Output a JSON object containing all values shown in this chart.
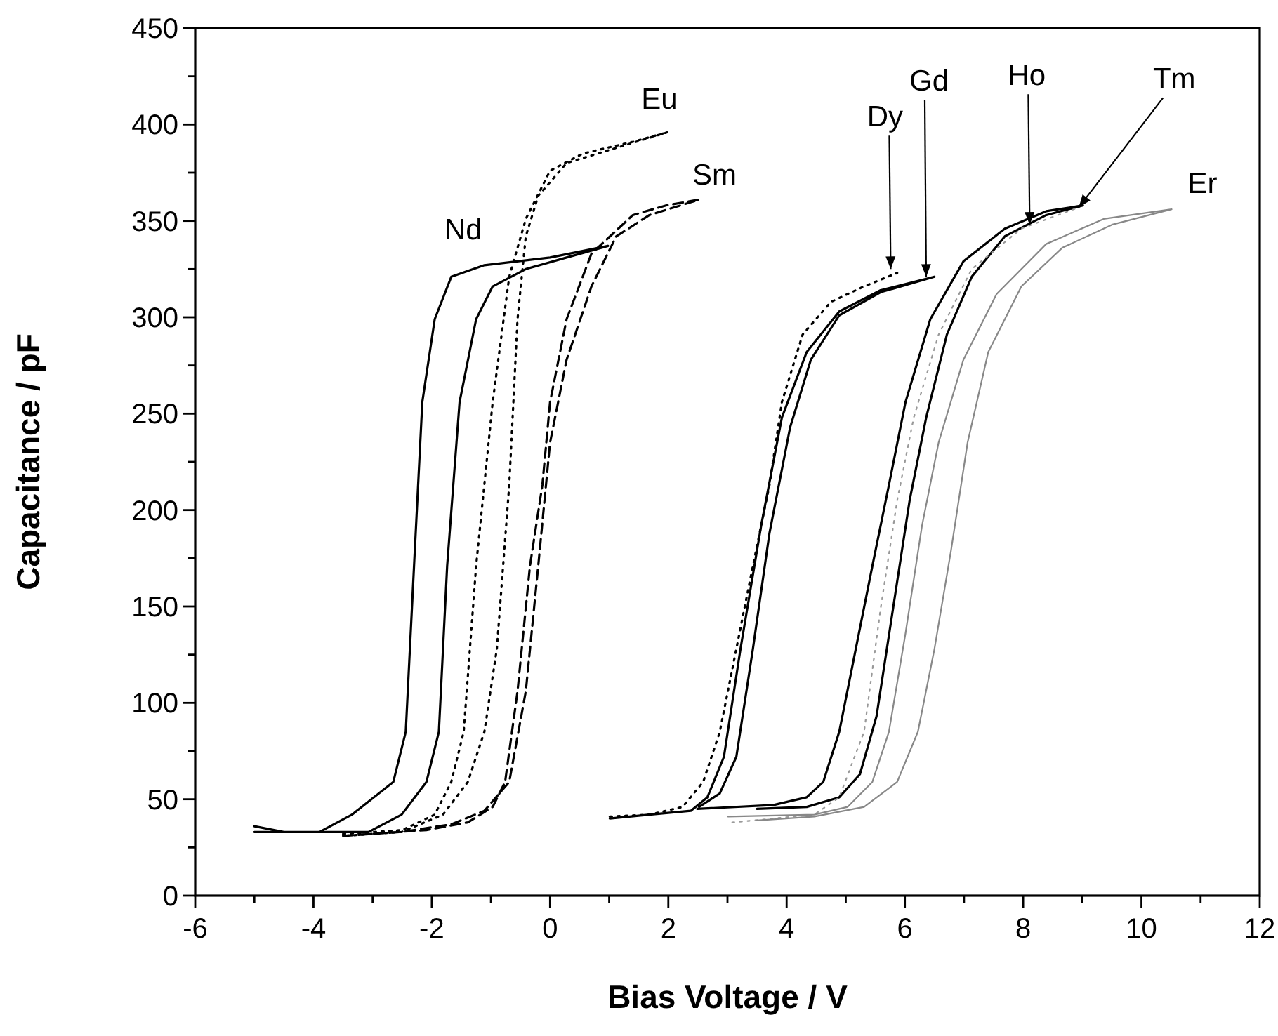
{
  "chart_data": {
    "type": "line",
    "xlabel": "Bias Voltage / V",
    "ylabel": "Capacitance / pF",
    "xlim": [
      -6,
      12
    ],
    "xticks": [
      -6,
      {
        "value": -5,
        "label": null
      },
      -4,
      {
        "value": -3,
        "label": null
      },
      -2,
      {
        "value": -1,
        "label": null
      },
      0,
      {
        "value": 1,
        "label": null
      },
      2,
      {
        "value": 3,
        "label": null
      },
      4,
      {
        "value": 5,
        "label": null
      },
      6,
      {
        "value": 7,
        "label": null
      },
      8,
      {
        "value": 9,
        "label": null
      },
      10,
      {
        "value": 11,
        "label": null
      },
      12
    ],
    "ylim": [
      0,
      450
    ],
    "yticks": [
      0,
      {
        "value": 25,
        "label": null
      },
      50,
      {
        "value": 75,
        "label": null
      },
      100,
      {
        "value": 125,
        "label": null
      },
      150,
      {
        "value": 175,
        "label": null
      },
      200,
      {
        "value": 225,
        "label": null
      },
      250,
      {
        "value": 275,
        "label": null
      },
      300,
      {
        "value": 325,
        "label": null
      },
      350,
      {
        "value": 375,
        "label": null
      },
      400,
      {
        "value": 425,
        "label": null
      },
      450
    ],
    "grid": false,
    "marker": "none",
    "series": [
      {
        "color": "#000000",
        "line_style": "solid",
        "x": [
          -5,
          -4.5,
          -3.9,
          -3.35,
          -2.65,
          -2.44,
          -2.3,
          -2.16,
          -1.95,
          -1.67,
          -1.11,
          0,
          0.98,
          0.28,
          -0.41,
          -0.97,
          -1.25,
          -1.53,
          -1.74,
          -1.88,
          -2.09,
          -2.51,
          -3.07,
          -3.9,
          -5
        ],
        "values": [
          36,
          33,
          33,
          42,
          59,
          85,
          171,
          256,
          299,
          321,
          327,
          331,
          337,
          331,
          325,
          316,
          299,
          256,
          171,
          85,
          59,
          42,
          33,
          33,
          33
        ]
      },
      {
        "color": "#000000",
        "line_style": "dotted",
        "x": [
          -3.5,
          -2.5,
          -1.95,
          -1.67,
          -1.46,
          -1.25,
          -0.97,
          -0.69,
          -0.41,
          0,
          0.56,
          1.4,
          1.99,
          0.28,
          -0.2,
          -0.41,
          -0.55,
          -0.69,
          -0.9,
          -1.11,
          -1.39,
          -1.81,
          -2.51,
          -3.49
        ],
        "values": [
          32,
          34,
          42,
          59,
          85,
          171,
          256,
          321,
          351,
          376,
          385,
          391,
          396,
          380,
          363,
          342,
          299,
          213,
          128,
          85,
          59,
          42,
          33,
          31
        ]
      },
      {
        "color": "#000000",
        "line_style": "dashed",
        "x": [
          -3.5,
          -2.09,
          -1.39,
          -0.97,
          -0.76,
          -0.55,
          -0.34,
          -0.13,
          0,
          0.28,
          0.7,
          1.4,
          1.96,
          2.52,
          1.68,
          1.12,
          0.7,
          0.28,
          0,
          -0.2,
          -0.41,
          -0.69,
          -1.11,
          -1.67,
          -2.51
        ],
        "values": [
          31,
          34,
          38,
          46,
          59,
          106,
          171,
          213,
          256,
          299,
          333,
          353,
          358,
          361,
          353,
          342,
          316,
          278,
          235,
          171,
          106,
          59,
          44,
          37,
          33
        ]
      },
      {
        "color": "#000000",
        "line_style": "dotted",
        "x": [
          1.01,
          1.68,
          2.24,
          2.59,
          2.87,
          3.15,
          3.43,
          3.71,
          3.92,
          4.27,
          4.75,
          5.31,
          5.87
        ],
        "values": [
          41,
          42,
          46,
          59,
          85,
          128,
          171,
          213,
          256,
          291,
          308,
          316,
          323
        ]
      },
      {
        "color": "#000000",
        "line_style": "solid",
        "x": [
          1.01,
          1.68,
          2.38,
          2.66,
          2.94,
          3.22,
          3.57,
          3.92,
          4.34,
          4.89,
          5.59,
          6.5,
          5.59,
          4.89,
          4.41,
          4.06,
          3.71,
          3.43,
          3.15,
          2.87,
          2.52
        ],
        "values": [
          40,
          42,
          44,
          51,
          72,
          128,
          192,
          248,
          282,
          303,
          314,
          321,
          313,
          301,
          278,
          243,
          188,
          128,
          72,
          53,
          46
        ]
      },
      {
        "color": "#000000",
        "line_style": "solid",
        "x": [
          2.49,
          3.78,
          4.34,
          4.62,
          4.89,
          5.17,
          5.45,
          5.73,
          6.01,
          6.43,
          6.99,
          7.69,
          8.39,
          9.01,
          8.39,
          7.69,
          7.13,
          6.71,
          6.36,
          6.08,
          5.8,
          5.52,
          5.24,
          4.89,
          4.34,
          3.5
        ],
        "values": [
          45,
          47,
          51,
          59,
          85,
          128,
          171,
          213,
          256,
          299,
          329,
          346,
          355,
          358,
          353,
          342,
          321,
          291,
          248,
          205,
          149,
          93,
          63,
          51,
          46,
          45
        ]
      },
      {
        "color": "#999999",
        "line_style": "dotted",
        "x": [
          3.08,
          4.47,
          4.89,
          5.31,
          5.59,
          5.87,
          6.15,
          6.57,
          7.13,
          7.97,
          8.94
        ],
        "values": [
          38,
          42,
          51,
          85,
          149,
          205,
          248,
          291,
          325,
          346,
          357
        ]
      },
      {
        "color": "#888888",
        "line_style": "solid",
        "x": [
          3.01,
          4.47,
          5.03,
          5.45,
          5.73,
          6.01,
          6.29,
          6.57,
          6.99,
          7.55,
          8.39,
          9.36,
          10.51,
          9.5,
          8.66,
          7.97,
          7.41,
          7.06,
          6.78,
          6.5,
          6.22,
          5.87,
          5.31,
          4.47,
          3.5
        ],
        "values": [
          41,
          42,
          46,
          59,
          85,
          136,
          192,
          235,
          278,
          312,
          338,
          351,
          356,
          348,
          336,
          316,
          282,
          235,
          179,
          128,
          85,
          59,
          46,
          41,
          39
        ]
      }
    ],
    "annotations": [
      {
        "text": "Nd",
        "x": -1.11,
        "y": 327
      },
      {
        "text": "Eu",
        "x": 1.99,
        "y": 396
      },
      {
        "text": "Sm",
        "x": 2.52,
        "y": 361
      },
      {
        "text": "Dy",
        "x": 5.76,
        "y": 325
      },
      {
        "text": "Gd",
        "x": 6.36,
        "y": 321
      },
      {
        "text": "Ho",
        "x": 8.11,
        "y": 348
      },
      {
        "text": "Tm",
        "x": 8.94,
        "y": 357
      },
      {
        "text": "Er",
        "x": 10.51,
        "y": 356
      }
    ]
  }
}
